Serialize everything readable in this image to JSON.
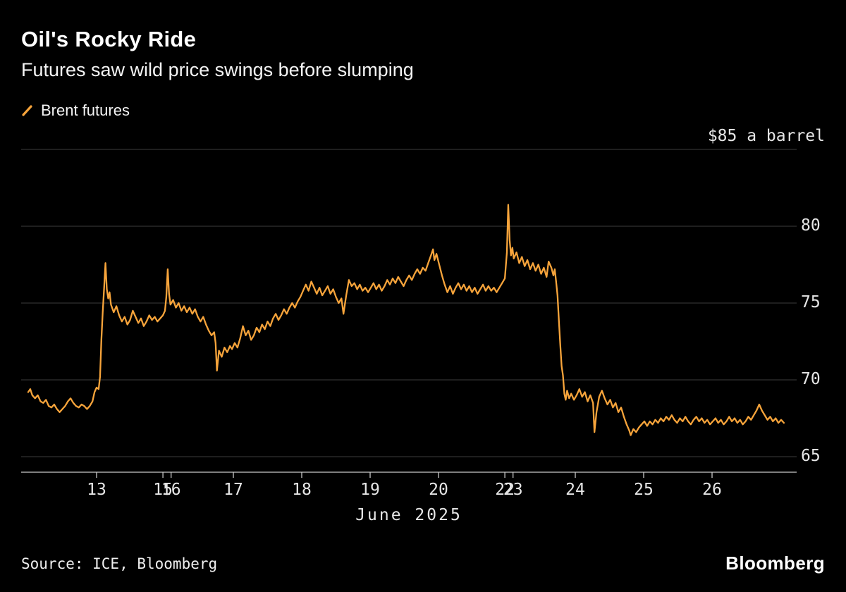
{
  "header": {
    "title": "Oil's Rocky Ride",
    "subtitle": "Futures saw wild price swings before slumping"
  },
  "legend": {
    "label": "Brent futures",
    "marker_color": "#F7A43B"
  },
  "footer": {
    "source": "Source: ICE, Bloomberg",
    "logo": "Bloomberg"
  },
  "chart_data": {
    "type": "line",
    "title": "Oil's Rocky Ride",
    "subtitle": "Futures saw wild price swings before slumping",
    "x_axis": {
      "title": "June 2025",
      "note": "x = trading-session index from June 12 2025; weekend gaps compressed so labels 15/16 and 22/23 overlap",
      "ticks": [
        {
          "label": "13",
          "u": 1.0
        },
        {
          "label": "15",
          "u": 1.97
        },
        {
          "label": "16",
          "u": 2.09
        },
        {
          "label": "17",
          "u": 3.0
        },
        {
          "label": "18",
          "u": 4.0
        },
        {
          "label": "19",
          "u": 5.0
        },
        {
          "label": "20",
          "u": 6.0
        },
        {
          "label": "22",
          "u": 6.97
        },
        {
          "label": "23",
          "u": 7.09
        },
        {
          "label": "24",
          "u": 8.0
        },
        {
          "label": "25",
          "u": 9.0
        },
        {
          "label": "26",
          "u": 10.0
        }
      ]
    },
    "y_axis": {
      "min": 65,
      "max": 85,
      "grid": true,
      "labels_position": "right",
      "gridlines": [
        {
          "value": 85,
          "label": "$85 a barrel",
          "label_position": "above"
        },
        {
          "value": 80,
          "label": "80"
        },
        {
          "value": 75,
          "label": "75"
        },
        {
          "value": 70,
          "label": "70"
        },
        {
          "value": 65,
          "label": "65"
        }
      ]
    },
    "series": [
      {
        "name": "Brent futures",
        "color": "#F7A43B",
        "unit": "$ a barrel",
        "points": [
          [
            0.0,
            69.2
          ],
          [
            0.03,
            69.4
          ],
          [
            0.06,
            69.0
          ],
          [
            0.1,
            68.8
          ],
          [
            0.14,
            69.0
          ],
          [
            0.18,
            68.6
          ],
          [
            0.22,
            68.5
          ],
          [
            0.26,
            68.7
          ],
          [
            0.3,
            68.3
          ],
          [
            0.34,
            68.2
          ],
          [
            0.38,
            68.4
          ],
          [
            0.42,
            68.1
          ],
          [
            0.46,
            67.9
          ],
          [
            0.5,
            68.1
          ],
          [
            0.54,
            68.3
          ],
          [
            0.58,
            68.6
          ],
          [
            0.62,
            68.8
          ],
          [
            0.66,
            68.5
          ],
          [
            0.7,
            68.3
          ],
          [
            0.74,
            68.2
          ],
          [
            0.78,
            68.4
          ],
          [
            0.82,
            68.3
          ],
          [
            0.86,
            68.1
          ],
          [
            0.9,
            68.3
          ],
          [
            0.94,
            68.6
          ],
          [
            0.97,
            69.2
          ],
          [
            1.0,
            69.5
          ],
          [
            1.03,
            69.4
          ],
          [
            1.05,
            70.2
          ],
          [
            1.07,
            72.6
          ],
          [
            1.09,
            74.4
          ],
          [
            1.11,
            76.0
          ],
          [
            1.13,
            77.6
          ],
          [
            1.15,
            75.9
          ],
          [
            1.17,
            75.3
          ],
          [
            1.19,
            75.7
          ],
          [
            1.21,
            74.9
          ],
          [
            1.25,
            74.4
          ],
          [
            1.29,
            74.8
          ],
          [
            1.33,
            74.2
          ],
          [
            1.37,
            73.8
          ],
          [
            1.41,
            74.1
          ],
          [
            1.45,
            73.6
          ],
          [
            1.49,
            73.9
          ],
          [
            1.53,
            74.5
          ],
          [
            1.57,
            74.1
          ],
          [
            1.61,
            73.7
          ],
          [
            1.65,
            74.0
          ],
          [
            1.69,
            73.5
          ],
          [
            1.73,
            73.8
          ],
          [
            1.77,
            74.2
          ],
          [
            1.81,
            73.9
          ],
          [
            1.85,
            74.1
          ],
          [
            1.89,
            73.8
          ],
          [
            1.93,
            74.0
          ],
          [
            1.97,
            74.2
          ],
          [
            2.0,
            74.5
          ],
          [
            2.02,
            75.4
          ],
          [
            2.04,
            77.2
          ],
          [
            2.06,
            75.6
          ],
          [
            2.08,
            74.9
          ],
          [
            2.12,
            75.2
          ],
          [
            2.16,
            74.7
          ],
          [
            2.2,
            75.0
          ],
          [
            2.24,
            74.5
          ],
          [
            2.28,
            74.8
          ],
          [
            2.32,
            74.4
          ],
          [
            2.36,
            74.7
          ],
          [
            2.4,
            74.3
          ],
          [
            2.44,
            74.6
          ],
          [
            2.48,
            74.1
          ],
          [
            2.52,
            73.8
          ],
          [
            2.56,
            74.1
          ],
          [
            2.6,
            73.6
          ],
          [
            2.64,
            73.2
          ],
          [
            2.68,
            72.9
          ],
          [
            2.72,
            73.1
          ],
          [
            2.74,
            72.4
          ],
          [
            2.76,
            70.6
          ],
          [
            2.79,
            71.9
          ],
          [
            2.83,
            71.5
          ],
          [
            2.87,
            72.1
          ],
          [
            2.91,
            71.8
          ],
          [
            2.95,
            72.2
          ],
          [
            2.98,
            72.0
          ],
          [
            3.02,
            72.4
          ],
          [
            3.06,
            72.1
          ],
          [
            3.1,
            72.7
          ],
          [
            3.14,
            73.5
          ],
          [
            3.18,
            72.9
          ],
          [
            3.22,
            73.2
          ],
          [
            3.26,
            72.6
          ],
          [
            3.3,
            72.9
          ],
          [
            3.34,
            73.4
          ],
          [
            3.38,
            73.1
          ],
          [
            3.42,
            73.6
          ],
          [
            3.46,
            73.3
          ],
          [
            3.5,
            73.8
          ],
          [
            3.54,
            73.5
          ],
          [
            3.58,
            74.0
          ],
          [
            3.62,
            74.3
          ],
          [
            3.66,
            73.9
          ],
          [
            3.7,
            74.2
          ],
          [
            3.74,
            74.6
          ],
          [
            3.78,
            74.3
          ],
          [
            3.82,
            74.7
          ],
          [
            3.86,
            75.0
          ],
          [
            3.9,
            74.7
          ],
          [
            3.94,
            75.1
          ],
          [
            3.98,
            75.4
          ],
          [
            4.02,
            75.8
          ],
          [
            4.06,
            76.2
          ],
          [
            4.1,
            75.8
          ],
          [
            4.14,
            76.4
          ],
          [
            4.18,
            76.0
          ],
          [
            4.22,
            75.6
          ],
          [
            4.26,
            76.0
          ],
          [
            4.3,
            75.5
          ],
          [
            4.34,
            75.8
          ],
          [
            4.38,
            76.1
          ],
          [
            4.42,
            75.6
          ],
          [
            4.46,
            75.9
          ],
          [
            4.5,
            75.4
          ],
          [
            4.54,
            75.0
          ],
          [
            4.58,
            75.3
          ],
          [
            4.61,
            74.3
          ],
          [
            4.65,
            75.5
          ],
          [
            4.69,
            76.5
          ],
          [
            4.73,
            76.1
          ],
          [
            4.77,
            76.3
          ],
          [
            4.81,
            75.9
          ],
          [
            4.85,
            76.2
          ],
          [
            4.89,
            75.8
          ],
          [
            4.93,
            76.0
          ],
          [
            4.97,
            75.7
          ],
          [
            5.01,
            76.0
          ],
          [
            5.05,
            76.3
          ],
          [
            5.09,
            75.9
          ],
          [
            5.13,
            76.2
          ],
          [
            5.17,
            75.8
          ],
          [
            5.21,
            76.1
          ],
          [
            5.25,
            76.5
          ],
          [
            5.29,
            76.2
          ],
          [
            5.33,
            76.6
          ],
          [
            5.37,
            76.3
          ],
          [
            5.41,
            76.7
          ],
          [
            5.45,
            76.4
          ],
          [
            5.49,
            76.1
          ],
          [
            5.53,
            76.5
          ],
          [
            5.57,
            76.8
          ],
          [
            5.61,
            76.5
          ],
          [
            5.65,
            76.9
          ],
          [
            5.69,
            77.2
          ],
          [
            5.73,
            76.9
          ],
          [
            5.77,
            77.3
          ],
          [
            5.81,
            77.1
          ],
          [
            5.85,
            77.6
          ],
          [
            5.89,
            78.1
          ],
          [
            5.92,
            78.5
          ],
          [
            5.94,
            77.8
          ],
          [
            5.97,
            78.2
          ],
          [
            6.01,
            77.5
          ],
          [
            6.05,
            76.8
          ],
          [
            6.09,
            76.2
          ],
          [
            6.13,
            75.7
          ],
          [
            6.17,
            76.1
          ],
          [
            6.21,
            75.6
          ],
          [
            6.25,
            76.0
          ],
          [
            6.29,
            76.3
          ],
          [
            6.33,
            75.9
          ],
          [
            6.37,
            76.2
          ],
          [
            6.41,
            75.8
          ],
          [
            6.45,
            76.1
          ],
          [
            6.49,
            75.7
          ],
          [
            6.53,
            76.0
          ],
          [
            6.57,
            75.6
          ],
          [
            6.61,
            75.9
          ],
          [
            6.65,
            76.2
          ],
          [
            6.69,
            75.8
          ],
          [
            6.73,
            76.1
          ],
          [
            6.77,
            75.8
          ],
          [
            6.81,
            76.0
          ],
          [
            6.85,
            75.7
          ],
          [
            6.89,
            76.0
          ],
          [
            6.93,
            76.3
          ],
          [
            6.97,
            76.6
          ],
          [
            7.0,
            78.3
          ],
          [
            7.02,
            81.4
          ],
          [
            7.04,
            79.1
          ],
          [
            7.06,
            78.1
          ],
          [
            7.08,
            78.6
          ],
          [
            7.1,
            77.9
          ],
          [
            7.14,
            78.3
          ],
          [
            7.18,
            77.6
          ],
          [
            7.22,
            78.0
          ],
          [
            7.26,
            77.4
          ],
          [
            7.3,
            77.8
          ],
          [
            7.34,
            77.2
          ],
          [
            7.38,
            77.6
          ],
          [
            7.42,
            77.1
          ],
          [
            7.46,
            77.5
          ],
          [
            7.5,
            76.9
          ],
          [
            7.54,
            77.3
          ],
          [
            7.58,
            76.7
          ],
          [
            7.61,
            77.7
          ],
          [
            7.65,
            77.3
          ],
          [
            7.68,
            76.8
          ],
          [
            7.7,
            77.2
          ],
          [
            7.72,
            76.4
          ],
          [
            7.74,
            75.5
          ],
          [
            7.76,
            73.9
          ],
          [
            7.78,
            72.3
          ],
          [
            7.8,
            70.9
          ],
          [
            7.82,
            70.3
          ],
          [
            7.84,
            69.1
          ],
          [
            7.86,
            68.7
          ],
          [
            7.88,
            69.3
          ],
          [
            7.91,
            68.8
          ],
          [
            7.94,
            69.1
          ],
          [
            7.98,
            68.7
          ],
          [
            8.02,
            69.0
          ],
          [
            8.06,
            69.4
          ],
          [
            8.1,
            68.9
          ],
          [
            8.14,
            69.2
          ],
          [
            8.18,
            68.6
          ],
          [
            8.22,
            69.0
          ],
          [
            8.26,
            68.5
          ],
          [
            8.28,
            66.6
          ],
          [
            8.31,
            67.9
          ],
          [
            8.35,
            68.9
          ],
          [
            8.39,
            69.3
          ],
          [
            8.43,
            68.8
          ],
          [
            8.47,
            68.4
          ],
          [
            8.51,
            68.7
          ],
          [
            8.55,
            68.2
          ],
          [
            8.59,
            68.5
          ],
          [
            8.63,
            67.9
          ],
          [
            8.67,
            68.2
          ],
          [
            8.71,
            67.6
          ],
          [
            8.75,
            67.1
          ],
          [
            8.79,
            66.7
          ],
          [
            8.81,
            66.4
          ],
          [
            8.85,
            66.8
          ],
          [
            8.89,
            66.6
          ],
          [
            8.93,
            66.9
          ],
          [
            8.97,
            67.1
          ],
          [
            9.01,
            67.3
          ],
          [
            9.05,
            67.0
          ],
          [
            9.09,
            67.3
          ],
          [
            9.13,
            67.1
          ],
          [
            9.17,
            67.4
          ],
          [
            9.21,
            67.2
          ],
          [
            9.25,
            67.5
          ],
          [
            9.29,
            67.3
          ],
          [
            9.33,
            67.6
          ],
          [
            9.37,
            67.4
          ],
          [
            9.41,
            67.7
          ],
          [
            9.45,
            67.4
          ],
          [
            9.49,
            67.2
          ],
          [
            9.53,
            67.5
          ],
          [
            9.57,
            67.3
          ],
          [
            9.61,
            67.6
          ],
          [
            9.65,
            67.3
          ],
          [
            9.69,
            67.1
          ],
          [
            9.73,
            67.4
          ],
          [
            9.77,
            67.6
          ],
          [
            9.81,
            67.3
          ],
          [
            9.85,
            67.5
          ],
          [
            9.89,
            67.2
          ],
          [
            9.93,
            67.4
          ],
          [
            9.97,
            67.1
          ],
          [
            10.01,
            67.3
          ],
          [
            10.05,
            67.5
          ],
          [
            10.09,
            67.2
          ],
          [
            10.13,
            67.4
          ],
          [
            10.17,
            67.1
          ],
          [
            10.21,
            67.3
          ],
          [
            10.25,
            67.6
          ],
          [
            10.29,
            67.3
          ],
          [
            10.33,
            67.5
          ],
          [
            10.37,
            67.2
          ],
          [
            10.41,
            67.4
          ],
          [
            10.45,
            67.1
          ],
          [
            10.49,
            67.3
          ],
          [
            10.53,
            67.6
          ],
          [
            10.57,
            67.4
          ],
          [
            10.61,
            67.7
          ],
          [
            10.65,
            68.0
          ],
          [
            10.69,
            68.4
          ],
          [
            10.73,
            68.0
          ],
          [
            10.77,
            67.7
          ],
          [
            10.81,
            67.4
          ],
          [
            10.85,
            67.6
          ],
          [
            10.89,
            67.3
          ],
          [
            10.93,
            67.5
          ],
          [
            10.97,
            67.2
          ],
          [
            11.01,
            67.4
          ],
          [
            11.05,
            67.2
          ]
        ]
      }
    ]
  }
}
